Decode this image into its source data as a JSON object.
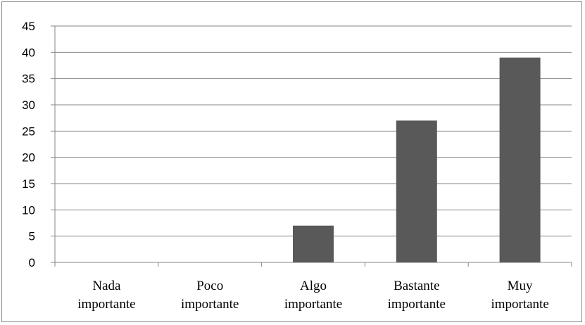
{
  "chart_data": {
    "type": "bar",
    "title": "",
    "xlabel": "",
    "ylabel": "",
    "categories": [
      [
        "Nada",
        "importante"
      ],
      [
        "Poco",
        "importante"
      ],
      [
        "Algo",
        "importante"
      ],
      [
        "Bastante",
        "importante"
      ],
      [
        "Muy",
        "importante"
      ]
    ],
    "values": [
      0,
      0,
      7,
      27,
      39
    ],
    "ylim": [
      0,
      45
    ],
    "yticks": [
      0,
      5,
      10,
      15,
      20,
      25,
      30,
      35,
      40,
      45
    ],
    "grid": true,
    "legend": "none",
    "colors": {
      "bar": "#595959",
      "gridline": "#868686",
      "axis": "#868686",
      "frame": "#868686"
    }
  }
}
